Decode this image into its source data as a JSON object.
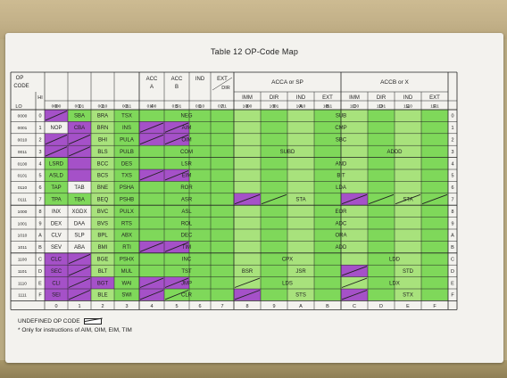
{
  "title": "Table 12 OP-Code Map",
  "legend_label": "UNDEFINED OP CODE",
  "footnote": "* Only for instructions of AIM, OIM, EIM, TIM",
  "corner": {
    "op": "OP",
    "code": "CODE",
    "hi": "HI",
    "lo": "LO"
  },
  "group_headers": [
    {
      "label": "ACC A",
      "col_start": 4,
      "col_end": 4
    },
    {
      "label": "ACC B",
      "col_start": 5,
      "col_end": 5
    },
    {
      "label": "IND",
      "col_start": 6,
      "col_end": 6
    },
    {
      "label": "EXT",
      "sub": "DIR",
      "col_start": 7,
      "col_end": 7
    },
    {
      "label": "ACCA or SP",
      "col_start": 8,
      "col_end": 11
    },
    {
      "label": "ACCB or X",
      "col_start": 12,
      "col_end": 15
    }
  ],
  "mode_headers": [
    "IMM",
    "DIR",
    "IND",
    "EXT",
    "IMM",
    "DIR",
    "IND",
    "EXT"
  ],
  "col_binary": [
    "0000",
    "0001",
    "0010",
    "0011",
    "0100",
    "0101",
    "0110",
    "0111",
    "1000",
    "1001",
    "1010",
    "1011",
    "1100",
    "1101",
    "1110",
    "1111"
  ],
  "col_hex": [
    "0",
    "1",
    "2",
    "3",
    "4",
    "5",
    "6",
    "7",
    "8",
    "9",
    "A",
    "B",
    "C",
    "D",
    "E",
    "F"
  ],
  "row_binary": [
    "0000",
    "0001",
    "0010",
    "0011",
    "0100",
    "0101",
    "0110",
    "0111",
    "1000",
    "1001",
    "1010",
    "1011",
    "1100",
    "1101",
    "1110",
    "1111"
  ],
  "row_hex": [
    "0",
    "1",
    "2",
    "3",
    "4",
    "5",
    "6",
    "7",
    "8",
    "9",
    "A",
    "B",
    "C",
    "D",
    "E",
    "F"
  ],
  "col0": [
    "",
    "NOP",
    "",
    "",
    "LSRD",
    "ASLD",
    "TAP",
    "TPA",
    "INX",
    "DEX",
    "CLV",
    "SEV",
    "CLC",
    "SEC",
    "CLI",
    "SEI"
  ],
  "col1": [
    "SBA",
    "CBA",
    "",
    "",
    "",
    "",
    "TAB",
    "TBA",
    "XGDX",
    "DAA",
    "SLP",
    "ABA",
    "",
    "",
    "",
    ""
  ],
  "col2": [
    "BRA",
    "BRN",
    "BHI",
    "BLS",
    "BCC",
    "BCS",
    "BNE",
    "BEQ",
    "BVC",
    "BVS",
    "BPL",
    "BMI",
    "BGE",
    "BLT",
    "BGT",
    "BLE"
  ],
  "col3": [
    "TSX",
    "INS",
    "PULA",
    "PULB",
    "DES",
    "TXS",
    "PSHA",
    "PSHB",
    "PULX",
    "RTS",
    "ABX",
    "RTI",
    "PSHX",
    "MUL",
    "WAI",
    "SWI"
  ],
  "col4to7": [
    "NEG",
    "AIM",
    "OIM",
    "COM",
    "LSR",
    "EIM",
    "ROR",
    "ASR",
    "ASL",
    "ROL",
    "DEC",
    "TIM",
    "INC",
    "TST",
    "JMP",
    "CLR"
  ],
  "acca": {
    "SUB": "SUB",
    "CMP": "CMP",
    "SBC": "SBC",
    "SUBD": "SUBD",
    "AND": "AND",
    "BIT": "BIT",
    "LDA": "LDA",
    "STA": "STA",
    "EOR": "EOR",
    "ADC": "ADC",
    "ORA": "ORA",
    "ADD": "ADD",
    "CPX": "CPX",
    "BSR": "BSR",
    "JSR": "JSR",
    "LDS": "LDS",
    "STS": "STS"
  },
  "accb": {
    "ADDD": "ADDD",
    "STA": "STA",
    "LDD": "LDD",
    "STD": "STD",
    "LDX": "LDX",
    "STX": "STX"
  },
  "colors": {
    "green": "#7fd85a",
    "green_light": "#a8e27c",
    "purple": "#a551c8",
    "card": "#f3f2ee",
    "ink": "#222222"
  }
}
